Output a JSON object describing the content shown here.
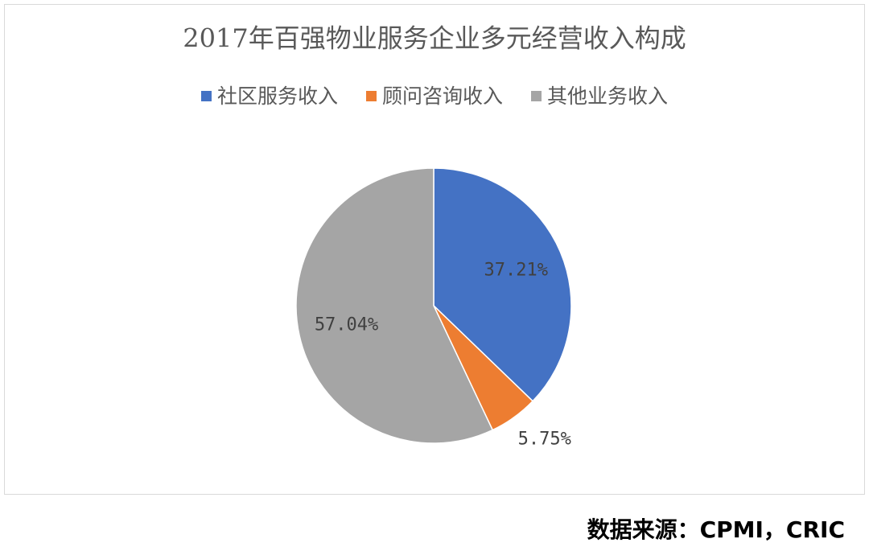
{
  "chart_data": {
    "type": "pie",
    "title": "2017年百强物业服务企业多元经营收入构成",
    "categories": [
      "社区服务收入",
      "顾问咨询收入",
      "其他业务收入"
    ],
    "values": [
      37.21,
      5.75,
      57.04
    ],
    "value_labels": [
      "37.21%",
      "5.75%",
      "57.04%"
    ],
    "colors": [
      "#4472c4",
      "#ed7d31",
      "#a5a5a5"
    ],
    "legend": "top",
    "source": "数据来源：CPMI，CRIC"
  }
}
